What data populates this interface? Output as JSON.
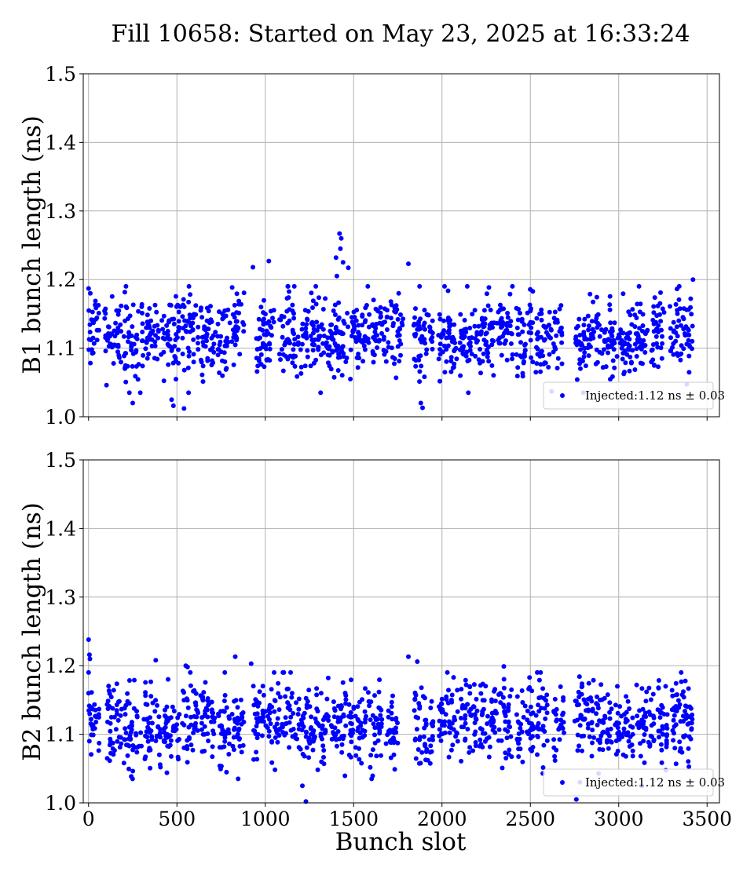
{
  "figure": {
    "title": "Fill 10658: Started on May 23, 2025 at 16:33:24",
    "xlabel": "Bunch slot"
  },
  "chart_data": [
    {
      "type": "scatter",
      "title": "",
      "xlabel": "",
      "ylabel": "B1 bunch length (ns)",
      "xlim": [
        -30,
        3570
      ],
      "ylim": [
        1.0,
        1.5
      ],
      "xticks": [
        0,
        500,
        1000,
        1500,
        2000,
        2500,
        3000,
        3500
      ],
      "xtick_labels_visible": false,
      "yticks": [
        1.0,
        1.1,
        1.2,
        1.3,
        1.4,
        1.5
      ],
      "grid": true,
      "legend": {
        "placement": "lower-right",
        "label": "Injected:1.12 ns ± 0.03"
      },
      "series": [
        {
          "color": "#0000ff",
          "marker": "circle",
          "summary": {
            "mean": 1.12,
            "spread": 0.03
          },
          "trains": [
            [
              0,
              60
            ],
            [
              90,
              190
            ],
            [
              200,
              310
            ],
            [
              320,
              400
            ],
            [
              410,
              520
            ],
            [
              530,
              620
            ],
            [
              630,
              720
            ],
            [
              730,
              800
            ],
            [
              810,
              880
            ],
            [
              950,
              1060
            ],
            [
              1080,
              1190
            ],
            [
              1200,
              1300
            ],
            [
              1300,
              1410
            ],
            [
              1410,
              1470
            ],
            [
              1480,
              1590
            ],
            [
              1600,
              1700
            ],
            [
              1710,
              1780
            ],
            [
              1840,
              1950
            ],
            [
              1980,
              2090
            ],
            [
              2100,
              2200
            ],
            [
              2200,
              2300
            ],
            [
              2310,
              2400
            ],
            [
              2420,
              2520
            ],
            [
              2530,
              2620
            ],
            [
              2630,
              2680
            ],
            [
              2750,
              2860
            ],
            [
              2870,
              2980
            ],
            [
              2990,
              3080
            ],
            [
              3090,
              3170
            ],
            [
              3180,
              3260
            ],
            [
              3290,
              3350
            ],
            [
              3350,
              3420
            ]
          ],
          "outliers": [
            [
              930,
              1.218
            ],
            [
              1020,
              1.227
            ],
            [
              1420,
              1.267
            ],
            [
              1430,
              1.26
            ],
            [
              1425,
              1.245
            ],
            [
              1400,
              1.232
            ],
            [
              1440,
              1.225
            ],
            [
              1470,
              1.217
            ],
            [
              1810,
              1.223
            ],
            [
              1405,
              1.205
            ],
            [
              2620,
              1.037
            ],
            [
              470,
              1.025
            ],
            [
              480,
              1.016
            ],
            [
              540,
              1.012
            ],
            [
              1880,
              1.02
            ],
            [
              1890,
              1.013
            ],
            [
              250,
              1.02
            ],
            [
              0,
              1.187
            ],
            [
              10,
              1.18
            ],
            [
              3420,
              1.2
            ]
          ]
        }
      ]
    },
    {
      "type": "scatter",
      "title": "",
      "xlabel": "Bunch slot",
      "ylabel": "B2 bunch length (ns)",
      "xlim": [
        -30,
        3570
      ],
      "ylim": [
        1.0,
        1.5
      ],
      "xticks": [
        0,
        500,
        1000,
        1500,
        2000,
        2500,
        3000,
        3500
      ],
      "xtick_labels_visible": true,
      "yticks": [
        1.0,
        1.1,
        1.2,
        1.3,
        1.4,
        1.5
      ],
      "grid": true,
      "legend": {
        "placement": "lower-right",
        "label": "Injected:1.12 ns ± 0.03"
      },
      "series": [
        {
          "color": "#0000ff",
          "marker": "circle",
          "summary": {
            "mean": 1.12,
            "spread": 0.03
          },
          "trains": [
            [
              0,
              60
            ],
            [
              100,
              190
            ],
            [
              200,
              300
            ],
            [
              310,
              410
            ],
            [
              420,
              520
            ],
            [
              530,
              620
            ],
            [
              630,
              720
            ],
            [
              730,
              800
            ],
            [
              810,
              880
            ],
            [
              930,
              1040
            ],
            [
              1050,
              1160
            ],
            [
              1170,
              1260
            ],
            [
              1270,
              1360
            ],
            [
              1370,
              1460
            ],
            [
              1470,
              1570
            ],
            [
              1580,
              1660
            ],
            [
              1680,
              1750
            ],
            [
              1840,
              1950
            ],
            [
              1980,
              2090
            ],
            [
              2100,
              2200
            ],
            [
              2210,
              2310
            ],
            [
              2320,
              2400
            ],
            [
              2420,
              2520
            ],
            [
              2530,
              2600
            ],
            [
              2630,
              2690
            ],
            [
              2750,
              2860
            ],
            [
              2870,
              2960
            ],
            [
              2980,
              3080
            ],
            [
              3100,
              3200
            ],
            [
              3210,
              3280
            ],
            [
              3300,
              3400
            ],
            [
              3390,
              3420
            ]
          ],
          "outliers": [
            [
              0,
              1.238
            ],
            [
              5,
              1.216
            ],
            [
              8,
              1.21
            ],
            [
              0,
              1.19
            ],
            [
              0,
              1.16
            ],
            [
              380,
              1.208
            ],
            [
              550,
              1.2
            ],
            [
              560,
              1.198
            ],
            [
              830,
              1.213
            ],
            [
              920,
              1.203
            ],
            [
              1810,
              1.213
            ],
            [
              1860,
              1.206
            ],
            [
              2350,
              1.199
            ],
            [
              1230,
              1.002
            ],
            [
              2760,
              1.005
            ],
            [
              1210,
              1.025
            ],
            [
              2780,
              1.03
            ],
            [
              3130,
              1.025
            ]
          ]
        }
      ]
    }
  ]
}
